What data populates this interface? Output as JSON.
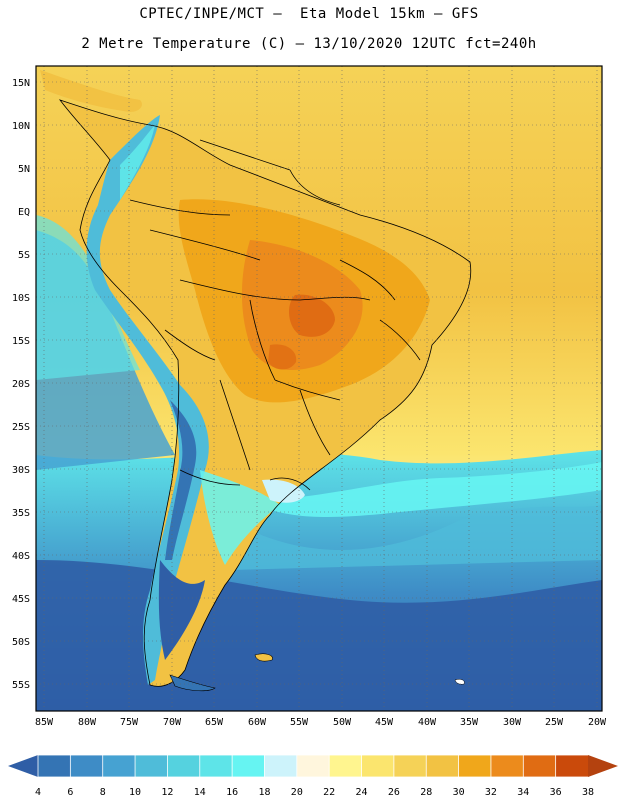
{
  "title": {
    "line1": "CPTEC/INPE/MCT –  Eta Model 15km – GFS",
    "line2": "2 Metre Temperature (C) – 13/10/2020 12UTC fct=240h"
  },
  "map": {
    "lat_labels": [
      "15N",
      "10N",
      "5N",
      "EQ",
      "5S",
      "10S",
      "15S",
      "20S",
      "25S",
      "30S",
      "35S",
      "40S",
      "45S",
      "50S",
      "55S"
    ],
    "lon_labels": [
      "85W",
      "80W",
      "75W",
      "70W",
      "65W",
      "60W",
      "55W",
      "50W",
      "45W",
      "40W",
      "35W",
      "30W",
      "25W",
      "20W"
    ]
  },
  "colorbar": {
    "ticks": [
      "4",
      "6",
      "8",
      "10",
      "12",
      "14",
      "16",
      "18",
      "20",
      "22",
      "24",
      "26",
      "28",
      "30",
      "32",
      "34",
      "36",
      "38"
    ],
    "colors": [
      "#2f5ea6",
      "#3474b4",
      "#3e8cc6",
      "#46a2d2",
      "#4fbcd9",
      "#55d2df",
      "#5ee4e8",
      "#66f4f2",
      "#cdf3fb",
      "#fff6dd",
      "#fff58f",
      "#fbe56e",
      "#f5d257",
      "#f2c243",
      "#f0a71b",
      "#ec8b1c",
      "#e06c13",
      "#ca4a0b",
      "#b4420f"
    ]
  },
  "scale_colors": {
    "ocean_deep": "#2f5ea6",
    "ocean_mid": "#46a2d2",
    "ocean_cyan": "#5ee4e8",
    "warm_yellow": "#f5d257",
    "warm_orange": "#f0a71b",
    "hot_orange": "#e06c13",
    "map_frame": "#000000"
  }
}
